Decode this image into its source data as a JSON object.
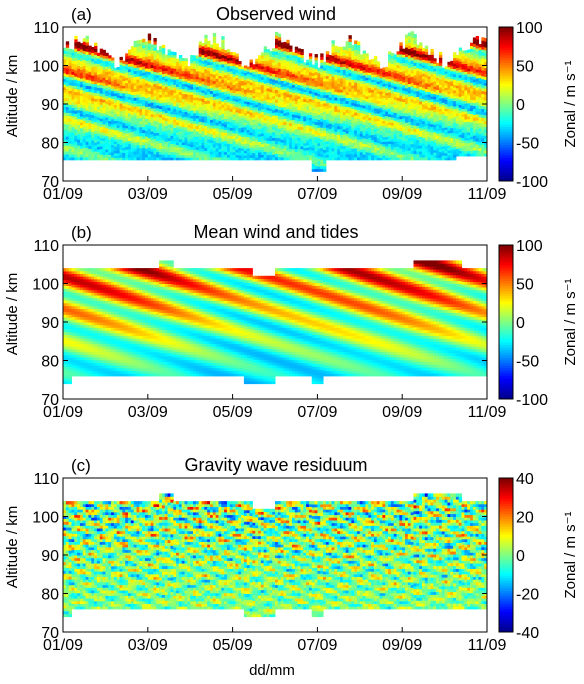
{
  "xlabel": "dd/mm",
  "ylabel": "Altitude / km",
  "x_ticks": [
    "01/09",
    "03/09",
    "05/09",
    "07/09",
    "09/09",
    "11/09"
  ],
  "y_ticks": [
    "70",
    "80",
    "90",
    "100",
    "110"
  ],
  "colormap": [
    "#00008f",
    "#0000ff",
    "#0080ff",
    "#00ffff",
    "#80ff80",
    "#ffff00",
    "#ff8000",
    "#ff0000",
    "#800000"
  ],
  "panels": [
    {
      "letter": "(a)",
      "title": "Observed wind",
      "colorbar_label": "Zonal / m s⁻¹",
      "colorbar_ticks": [
        "100",
        "50",
        "0",
        "-50",
        "-100"
      ]
    },
    {
      "letter": "(b)",
      "title": "Mean wind and tides",
      "colorbar_label": "Zonal / m s⁻¹",
      "colorbar_ticks": [
        "100",
        "50",
        "0",
        "-50",
        "-100"
      ]
    },
    {
      "letter": "(c)",
      "title": "Gravity wave residuum",
      "colorbar_label": "Zonal / m s⁻¹",
      "colorbar_ticks": [
        "40",
        "20",
        "0",
        "-20",
        "-40"
      ]
    }
  ],
  "chart_data": [
    {
      "type": "heatmap",
      "title": "Observed wind",
      "xlabel": "",
      "ylabel": "Altitude / km",
      "x_range": [
        "01/09",
        "11/09"
      ],
      "ylim": [
        70,
        110
      ],
      "colorbar_label": "Zonal / m s⁻¹",
      "clim": [
        -100,
        100
      ],
      "coverage_altitude_km": [
        75,
        104
      ],
      "pattern": "alternating diurnal/semidiurnal tidal stripes; strong eastward (red) above 90 km, westward (blue) near 80 km"
    },
    {
      "type": "heatmap",
      "title": "Mean wind and tides",
      "xlabel": "",
      "ylabel": "Altitude / km",
      "x_range": [
        "01/09",
        "11/09"
      ],
      "ylim": [
        70,
        110
      ],
      "colorbar_label": "Zonal / m s⁻¹",
      "clim": [
        -100,
        100
      ],
      "coverage_altitude_km": [
        76,
        104
      ],
      "pattern": "smooth tilted tidal bands with downward phase progression"
    },
    {
      "type": "heatmap",
      "title": "Gravity wave residuum",
      "xlabel": "dd/mm",
      "ylabel": "Altitude / km",
      "x_range": [
        "01/09",
        "11/09"
      ],
      "ylim": [
        70,
        110
      ],
      "colorbar_label": "Zonal / m s⁻¹",
      "clim": [
        -40,
        40
      ],
      "coverage_altitude_km": [
        76,
        104
      ],
      "pattern": "fine-scale noisy residual structures, mostly near zero"
    }
  ]
}
